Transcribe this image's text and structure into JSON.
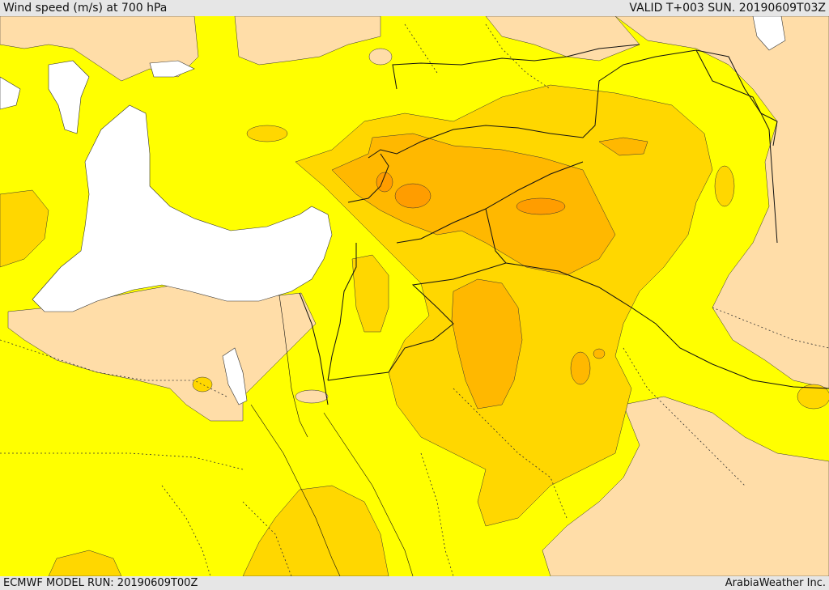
{
  "header": {
    "title": "Wind speed (m/s) at 700 hPa",
    "valid": "VALID T+003 SUN. 20190609T03Z"
  },
  "footer": {
    "model_run": "ECMWF MODEL RUN: 20190609T00Z",
    "credit": "ArabiaWeather Inc."
  },
  "map": {
    "colors": {
      "sea_white": "#ffffff",
      "speed_low_tan": "#ffdda8",
      "speed_base_yellow": "#ffff00",
      "speed_mid_gold": "#ffd700",
      "speed_high_amber": "#ffb800",
      "speed_peak_orange": "#ff9d00"
    }
  }
}
